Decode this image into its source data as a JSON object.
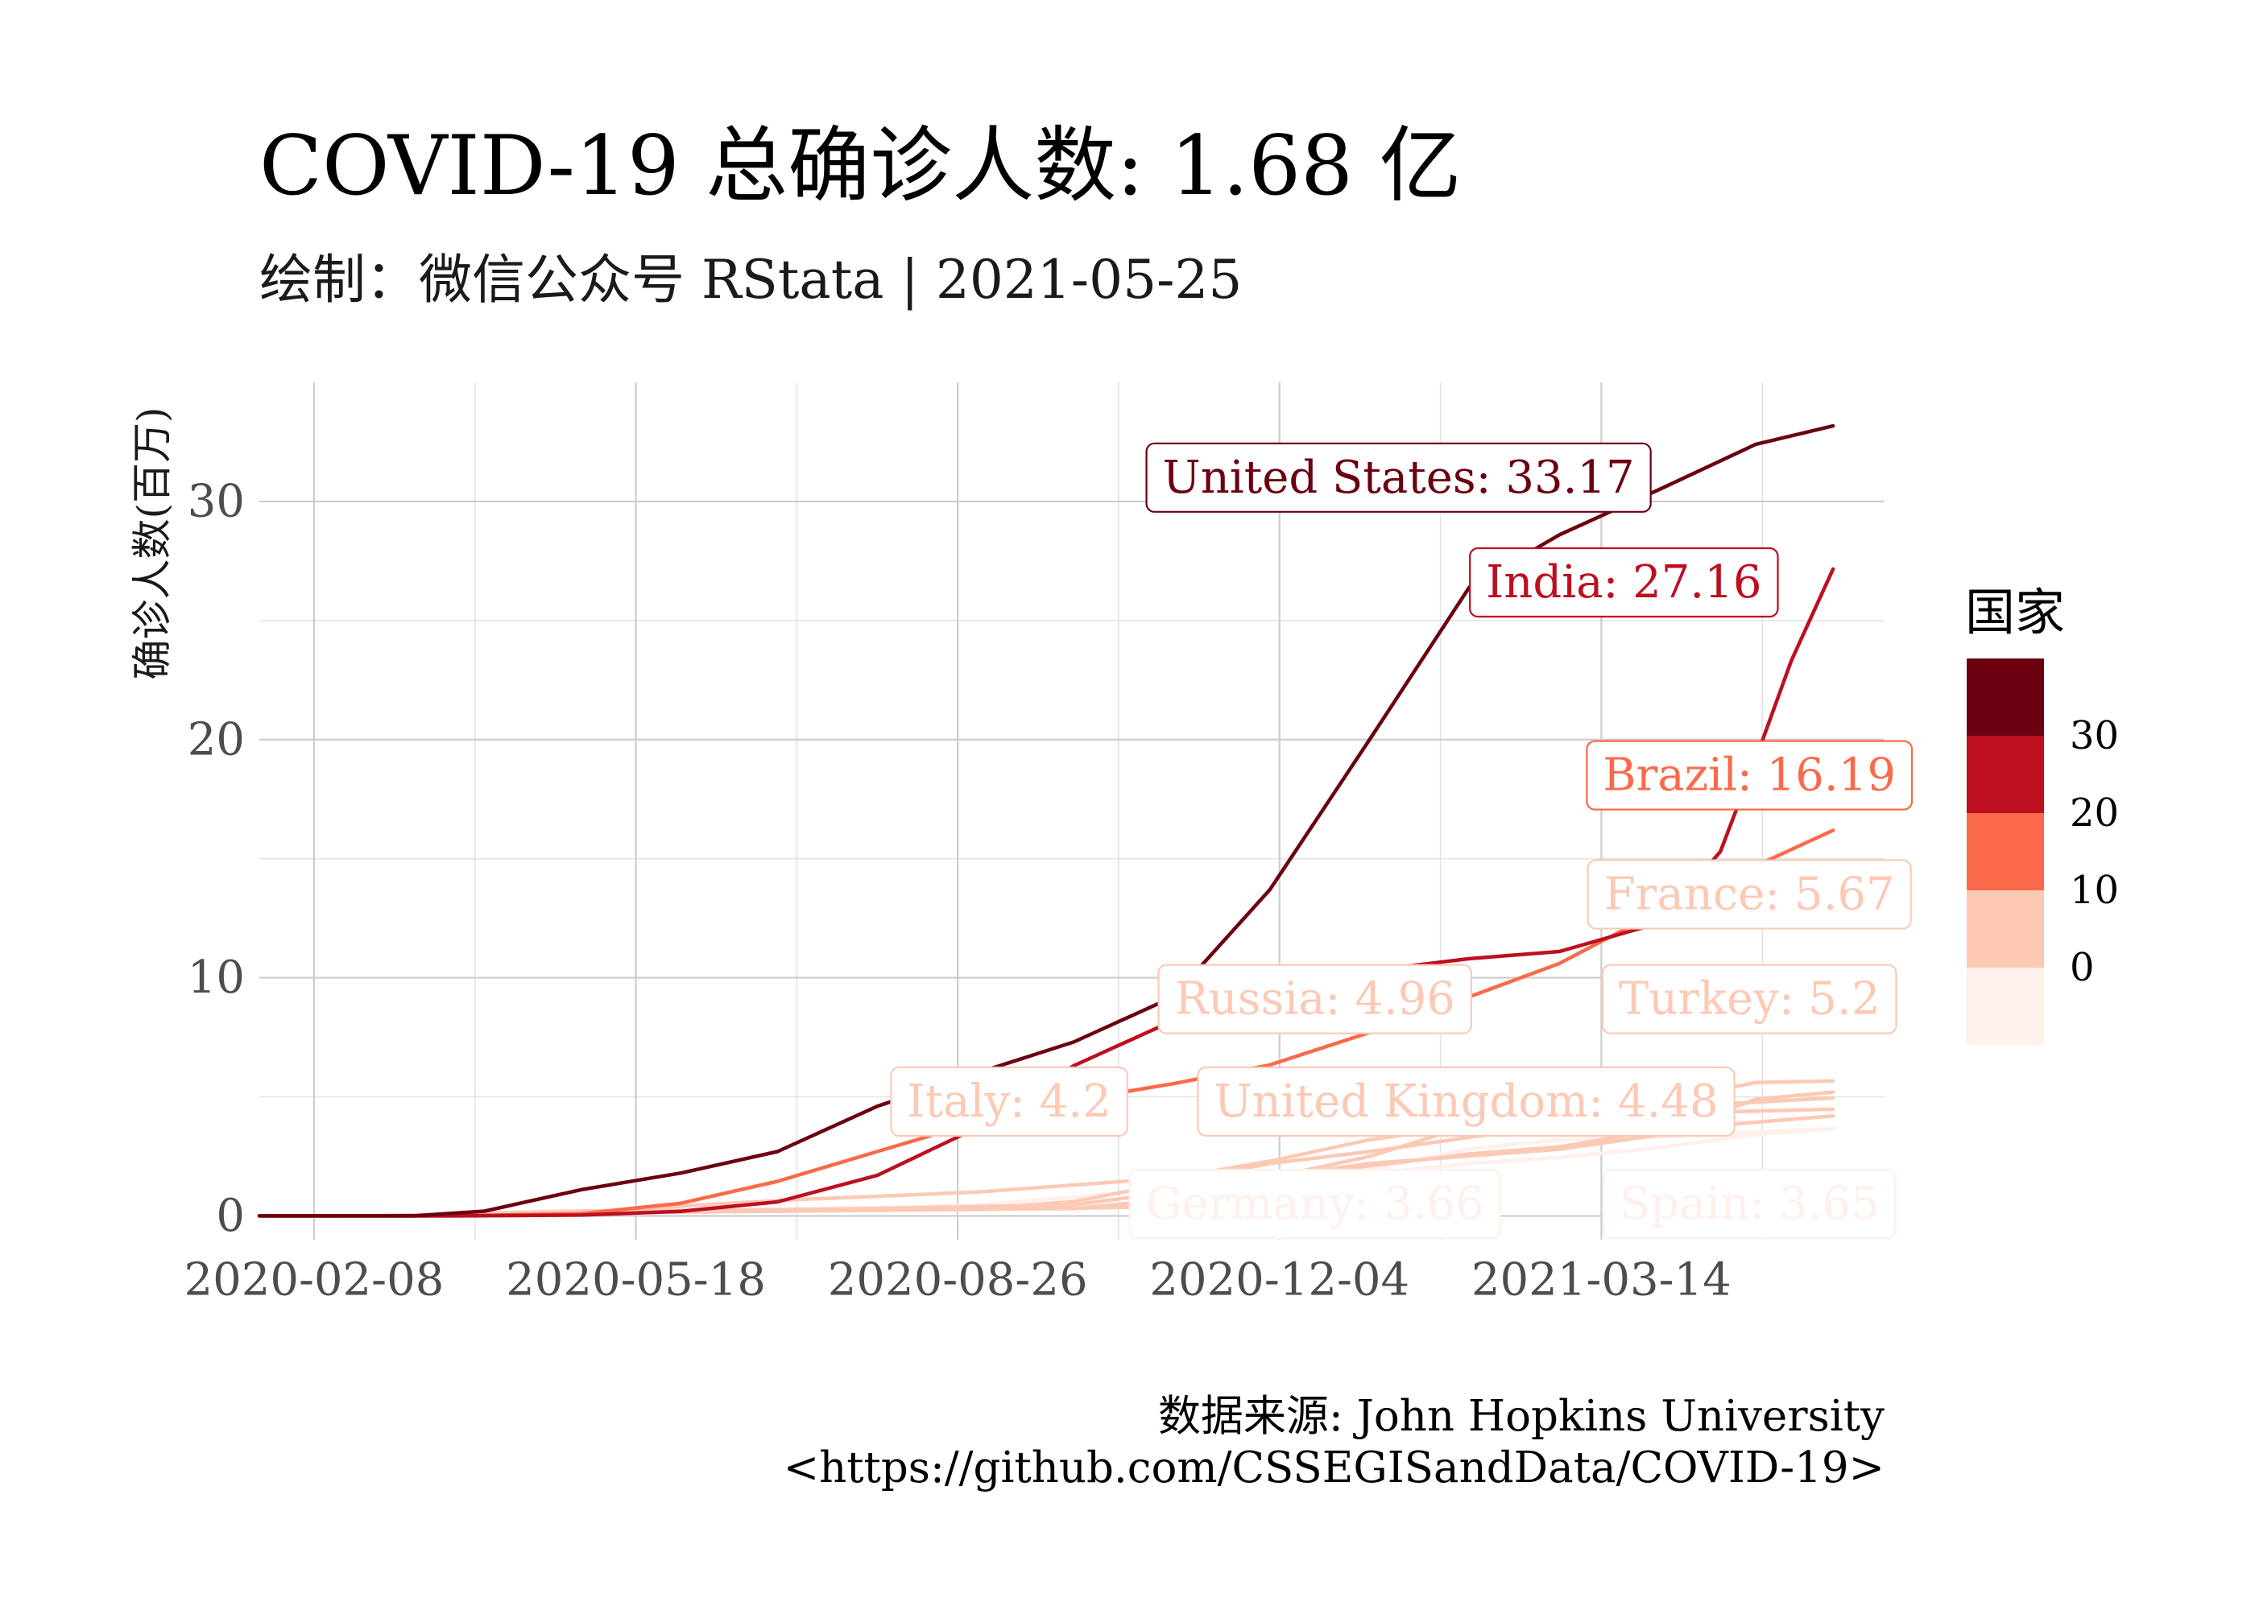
{
  "chart_data": {
    "type": "line",
    "title": "COVID-19 总确诊人数: 1.68 亿",
    "subtitle": "绘制：微信公众号 RStata | 2021-05-25",
    "caption": [
      "数据来源: John Hopkins University",
      "<https://github.com/CSSEGISandData/COVID-19>"
    ],
    "xlabel": "",
    "ylabel": "确诊人数(百万)",
    "x_tick_labels": [
      "2020-02-08",
      "2020-05-18",
      "2020-08-26",
      "2020-12-04",
      "2021-03-14"
    ],
    "x_ticks": [
      "2020-02-08",
      "2020-05-18",
      "2020-08-26",
      "2020-12-04",
      "2021-03-14"
    ],
    "xlim": [
      "2020-01-22",
      "2021-06-10"
    ],
    "y_ticks": [
      0,
      10,
      20,
      30
    ],
    "ylim": [
      -1,
      35
    ],
    "grid": true,
    "legend": {
      "title": "国家",
      "position": "right",
      "scale": "binned",
      "labels": [
        "30",
        "20",
        "10",
        "0"
      ],
      "bins": [
        {
          "from": -10,
          "to": 0,
          "color": "#fff0ec"
        },
        {
          "from": 0,
          "to": 10,
          "color": "#fcc9b5"
        },
        {
          "from": 10,
          "to": 20,
          "color": "#fa6a4a"
        },
        {
          "from": 20,
          "to": 30,
          "color": "#bd0f20"
        },
        {
          "from": 30,
          "to": 40,
          "color": "#6b0010"
        }
      ]
    },
    "series": [
      {
        "name": "United States",
        "color": "#6b0010",
        "label": "United States: 33.17",
        "label_x": "2021-01-10",
        "label_y": 31.0,
        "points": [
          [
            "2020-01-22",
            0
          ],
          [
            "2020-03-10",
            0.001
          ],
          [
            "2020-04-01",
            0.2
          ],
          [
            "2020-05-01",
            1.1
          ],
          [
            "2020-06-01",
            1.8
          ],
          [
            "2020-07-01",
            2.7
          ],
          [
            "2020-08-01",
            4.6
          ],
          [
            "2020-09-01",
            6.0
          ],
          [
            "2020-10-01",
            7.3
          ],
          [
            "2020-11-01",
            9.2
          ],
          [
            "2020-12-01",
            13.7
          ],
          [
            "2021-01-01",
            20.0
          ],
          [
            "2021-02-01",
            26.4
          ],
          [
            "2021-03-01",
            28.6
          ],
          [
            "2021-04-01",
            30.5
          ],
          [
            "2021-05-01",
            32.4
          ],
          [
            "2021-05-25",
            33.17
          ]
        ]
      },
      {
        "name": "India",
        "color": "#bd0f20",
        "label": "India: 27.16",
        "label_x": "2021-03-21",
        "label_y": 26.6,
        "points": [
          [
            "2020-01-22",
            0
          ],
          [
            "2020-03-25",
            0.001
          ],
          [
            "2020-05-01",
            0.035
          ],
          [
            "2020-06-01",
            0.19
          ],
          [
            "2020-07-01",
            0.59
          ],
          [
            "2020-08-01",
            1.7
          ],
          [
            "2020-09-01",
            3.7
          ],
          [
            "2020-10-01",
            6.3
          ],
          [
            "2020-11-01",
            8.2
          ],
          [
            "2020-12-01",
            9.5
          ],
          [
            "2021-01-01",
            10.3
          ],
          [
            "2021-02-01",
            10.8
          ],
          [
            "2021-03-01",
            11.1
          ],
          [
            "2021-04-01",
            12.3
          ],
          [
            "2021-04-20",
            15.3
          ],
          [
            "2021-05-01",
            19.2
          ],
          [
            "2021-05-12",
            23.3
          ],
          [
            "2021-05-25",
            27.16
          ]
        ]
      },
      {
        "name": "Brazil",
        "color": "#fa6a4a",
        "label": "Brazil: 16.19",
        "label_x": "2021-04-29",
        "label_y": 18.5,
        "points": [
          [
            "2020-01-22",
            0
          ],
          [
            "2020-03-20",
            0.001
          ],
          [
            "2020-05-01",
            0.09
          ],
          [
            "2020-06-01",
            0.53
          ],
          [
            "2020-07-01",
            1.45
          ],
          [
            "2020-08-01",
            2.7
          ],
          [
            "2020-09-01",
            3.95
          ],
          [
            "2020-10-01",
            4.85
          ],
          [
            "2020-11-01",
            5.55
          ],
          [
            "2020-12-01",
            6.34
          ],
          [
            "2021-01-01",
            7.7
          ],
          [
            "2021-02-01",
            9.2
          ],
          [
            "2021-03-01",
            10.6
          ],
          [
            "2021-04-01",
            12.8
          ],
          [
            "2021-05-01",
            14.7
          ],
          [
            "2021-05-25",
            16.19
          ]
        ]
      },
      {
        "name": "France",
        "color": "#fcc9b5",
        "label": "France: 5.67",
        "label_x": "2021-04-29",
        "label_y": 13.5,
        "points": [
          [
            "2020-01-22",
            0
          ],
          [
            "2020-03-15",
            0.005
          ],
          [
            "2020-05-01",
            0.17
          ],
          [
            "2020-07-01",
            0.2
          ],
          [
            "2020-09-01",
            0.3
          ],
          [
            "2020-10-01",
            0.6
          ],
          [
            "2020-11-01",
            1.4
          ],
          [
            "2020-12-01",
            2.2
          ],
          [
            "2021-01-01",
            2.7
          ],
          [
            "2021-02-01",
            3.3
          ],
          [
            "2021-03-01",
            3.8
          ],
          [
            "2021-04-01",
            4.8
          ],
          [
            "2021-05-01",
            5.6
          ],
          [
            "2021-05-25",
            5.67
          ]
        ]
      },
      {
        "name": "Turkey",
        "color": "#fcc9b5",
        "label": "Turkey: 5.2",
        "label_x": "2021-04-29",
        "label_y": 9.1,
        "points": [
          [
            "2020-01-22",
            0
          ],
          [
            "2020-03-15",
            0.005
          ],
          [
            "2020-05-01",
            0.12
          ],
          [
            "2020-07-01",
            0.2
          ],
          [
            "2020-09-01",
            0.27
          ],
          [
            "2020-11-01",
            0.39
          ],
          [
            "2020-12-10",
            1.8
          ],
          [
            "2021-01-01",
            2.2
          ],
          [
            "2021-03-01",
            2.8
          ],
          [
            "2021-04-01",
            3.4
          ],
          [
            "2021-05-01",
            4.9
          ],
          [
            "2021-05-25",
            5.2
          ]
        ]
      },
      {
        "name": "Russia",
        "color": "#fcc9b5",
        "label": "Russia: 4.96",
        "label_x": "2020-12-15",
        "label_y": 9.1,
        "points": [
          [
            "2020-01-22",
            0
          ],
          [
            "2020-03-20",
            0.001
          ],
          [
            "2020-05-01",
            0.11
          ],
          [
            "2020-06-01",
            0.41
          ],
          [
            "2020-07-01",
            0.65
          ],
          [
            "2020-09-01",
            1.0
          ],
          [
            "2020-11-01",
            1.6
          ],
          [
            "2020-12-01",
            2.3
          ],
          [
            "2021-01-01",
            3.2
          ],
          [
            "2021-03-01",
            4.3
          ],
          [
            "2021-05-25",
            4.96
          ]
        ]
      },
      {
        "name": "United Kingdom",
        "color": "#fcc9b5",
        "label": "United Kingdom: 4.48",
        "label_x": "2021-01-31",
        "label_y": 4.8,
        "points": [
          [
            "2020-01-22",
            0
          ],
          [
            "2020-03-15",
            0.002
          ],
          [
            "2020-05-01",
            0.18
          ],
          [
            "2020-08-01",
            0.31
          ],
          [
            "2020-10-01",
            0.47
          ],
          [
            "2020-11-01",
            1.0
          ],
          [
            "2020-12-01",
            1.6
          ],
          [
            "2021-01-01",
            2.5
          ],
          [
            "2021-02-01",
            3.8
          ],
          [
            "2021-03-01",
            4.2
          ],
          [
            "2021-05-25",
            4.48
          ]
        ]
      },
      {
        "name": "Italy",
        "color": "#fcc9b5",
        "label": "Italy: 4.2",
        "label_x": "2020-09-11",
        "label_y": 4.8,
        "points": [
          [
            "2020-01-22",
            0
          ],
          [
            "2020-02-25",
            0.0003
          ],
          [
            "2020-04-01",
            0.11
          ],
          [
            "2020-05-01",
            0.21
          ],
          [
            "2020-08-01",
            0.25
          ],
          [
            "2020-10-01",
            0.31
          ],
          [
            "2020-11-01",
            0.7
          ],
          [
            "2020-12-01",
            1.6
          ],
          [
            "2021-01-01",
            2.1
          ],
          [
            "2021-02-01",
            2.6
          ],
          [
            "2021-03-01",
            2.9
          ],
          [
            "2021-04-01",
            3.6
          ],
          [
            "2021-05-25",
            4.2
          ]
        ]
      },
      {
        "name": "Germany",
        "color": "#fff0ec",
        "label": "Germany: 3.66",
        "label_x": "2020-12-15",
        "label_y": 0.5,
        "points": [
          [
            "2020-01-22",
            0
          ],
          [
            "2020-03-10",
            0.001
          ],
          [
            "2020-04-15",
            0.13
          ],
          [
            "2020-07-01",
            0.2
          ],
          [
            "2020-10-01",
            0.3
          ],
          [
            "2020-11-01",
            0.53
          ],
          [
            "2020-12-01",
            1.07
          ],
          [
            "2021-01-01",
            1.76
          ],
          [
            "2021-02-01",
            2.2
          ],
          [
            "2021-03-01",
            2.45
          ],
          [
            "2021-04-01",
            2.87
          ],
          [
            "2021-05-01",
            3.42
          ],
          [
            "2021-05-25",
            3.66
          ]
        ]
      },
      {
        "name": "Spain",
        "color": "#fff0ec",
        "label": "Spain: 3.65",
        "label_x": "2021-04-29",
        "label_y": 0.5,
        "points": [
          [
            "2020-01-22",
            0
          ],
          [
            "2020-03-10",
            0.002
          ],
          [
            "2020-04-15",
            0.18
          ],
          [
            "2020-07-01",
            0.25
          ],
          [
            "2020-09-01",
            0.46
          ],
          [
            "2020-10-01",
            0.78
          ],
          [
            "2020-11-01",
            1.2
          ],
          [
            "2020-12-01",
            1.65
          ],
          [
            "2021-01-01",
            1.92
          ],
          [
            "2021-02-01",
            2.82
          ],
          [
            "2021-03-01",
            3.2
          ],
          [
            "2021-04-01",
            3.3
          ],
          [
            "2021-05-01",
            3.53
          ],
          [
            "2021-05-25",
            3.65
          ]
        ]
      }
    ]
  }
}
